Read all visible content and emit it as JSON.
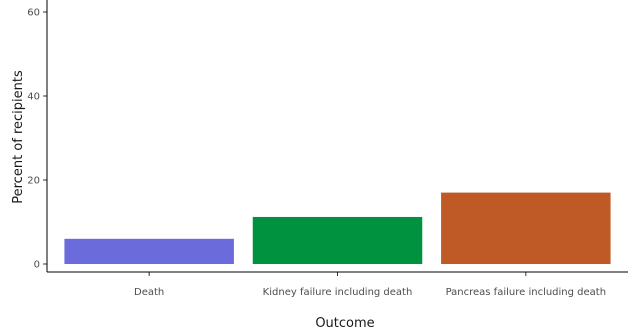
{
  "chart_data": {
    "type": "bar",
    "title": "",
    "xlabel": "Outcome",
    "ylabel": "Percent of recipients",
    "categories": [
      "Death",
      "Kidney failure including death",
      "Pancreas failure including death"
    ],
    "values": [
      6,
      11.2,
      17
    ],
    "colors": [
      "#6b6bdc",
      "#00923f",
      "#bf5a26"
    ],
    "ylim": [
      0,
      62
    ],
    "yticks": [
      0,
      20,
      40,
      60
    ],
    "grid": false,
    "legend": "none",
    "axis_color": "#000000"
  }
}
